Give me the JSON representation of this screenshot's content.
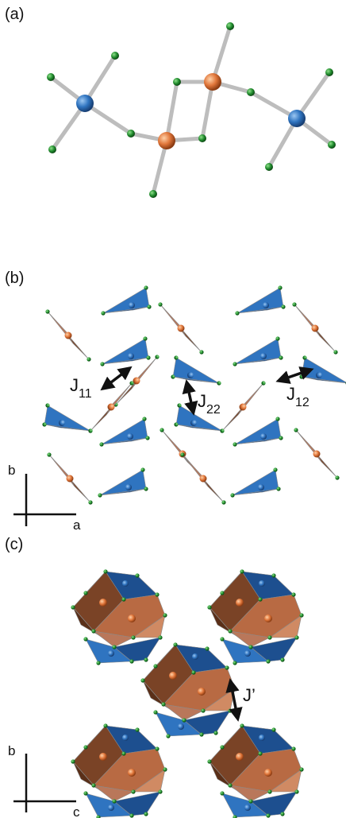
{
  "panels": [
    {
      "label": "(a)"
    },
    {
      "label": "(b)"
    },
    {
      "label": "(c)"
    }
  ],
  "couplings": {
    "j11": {
      "main": "J",
      "sub": "11"
    },
    "j22": {
      "main": "J",
      "sub": "22"
    },
    "j12": {
      "main": "J",
      "sub": "12"
    },
    "jprime": {
      "main": "J’"
    }
  },
  "axes": {
    "b_panel_axes": {
      "vertical": "b",
      "horizontal": "a"
    },
    "c_panel_axes": {
      "vertical": "b",
      "horizontal": "c"
    }
  },
  "colors": {
    "blue": "#2f74c0",
    "blue_dark": "#1d4f8f",
    "orange": "#e0763a",
    "brown": "#7a4326",
    "brown_light": "#b9775a",
    "green": "#1f8a2c",
    "bond": "#bdbdbd"
  }
}
